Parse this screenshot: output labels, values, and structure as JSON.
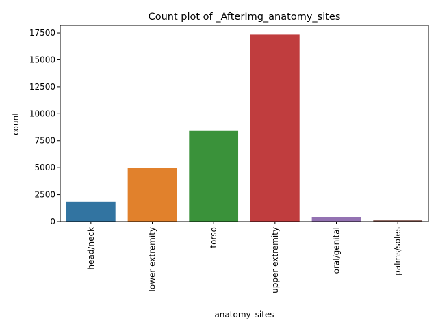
{
  "chart_data": {
    "type": "bar",
    "title": "Count plot of _AfterImg_anatomy_sites",
    "xlabel": "anatomy_sites",
    "ylabel": "count",
    "categories": [
      "head/neck",
      "lower extremity",
      "torso",
      "upper extremity",
      "oral/genital",
      "palms/soles"
    ],
    "values": [
      1850,
      5000,
      8450,
      17350,
      400,
      120
    ],
    "colors": [
      "#3274a1",
      "#e1812c",
      "#3a923a",
      "#c03d3e",
      "#9372b2",
      "#845b53"
    ],
    "ylim": [
      0,
      18200
    ],
    "yticks": [
      0,
      2500,
      5000,
      7500,
      10000,
      12500,
      15000,
      17500
    ],
    "grid": false,
    "legend": "none"
  }
}
